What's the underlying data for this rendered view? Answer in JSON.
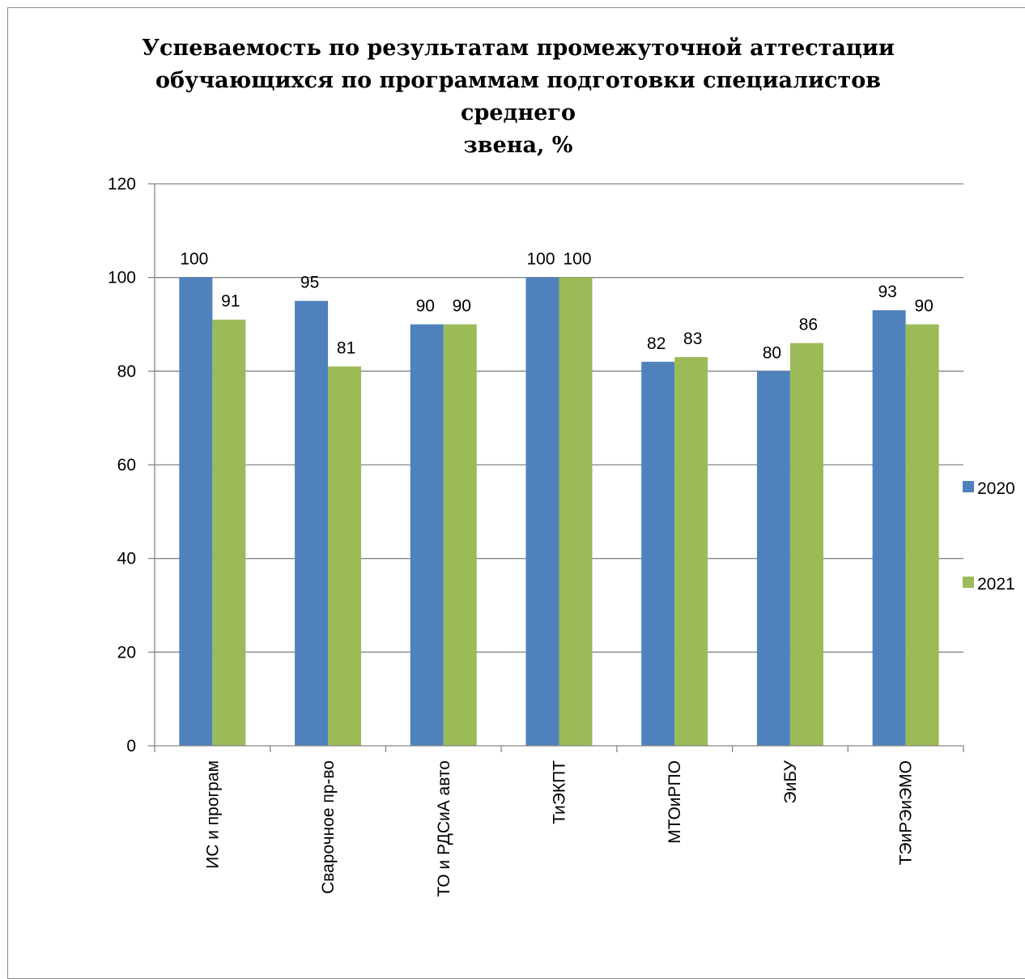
{
  "chart_data": {
    "type": "bar",
    "title_lines": [
      "Успеваемость по результатам промежуточной аттестации",
      "обучающихся по программам подготовки специалистов среднего",
      "звена, %"
    ],
    "categories": [
      "ИС и програм",
      "Сварочное пр-во",
      "ТО и РДСиА авто",
      "ТиЭКПТ",
      "МТОиРПО",
      "ЭиБУ",
      "ТЭиРЭиЭМО"
    ],
    "series": [
      {
        "name": "2020",
        "color": "#4f81bd",
        "values": [
          100,
          95,
          90,
          100,
          82,
          80,
          93
        ]
      },
      {
        "name": "2021",
        "color": "#9bbb59",
        "values": [
          91,
          81,
          90,
          100,
          83,
          86,
          90
        ]
      }
    ],
    "ylim": [
      0,
      120
    ],
    "yticks": [
      0,
      20,
      40,
      60,
      80,
      100,
      120
    ],
    "grid": true,
    "legend_position": "right"
  }
}
